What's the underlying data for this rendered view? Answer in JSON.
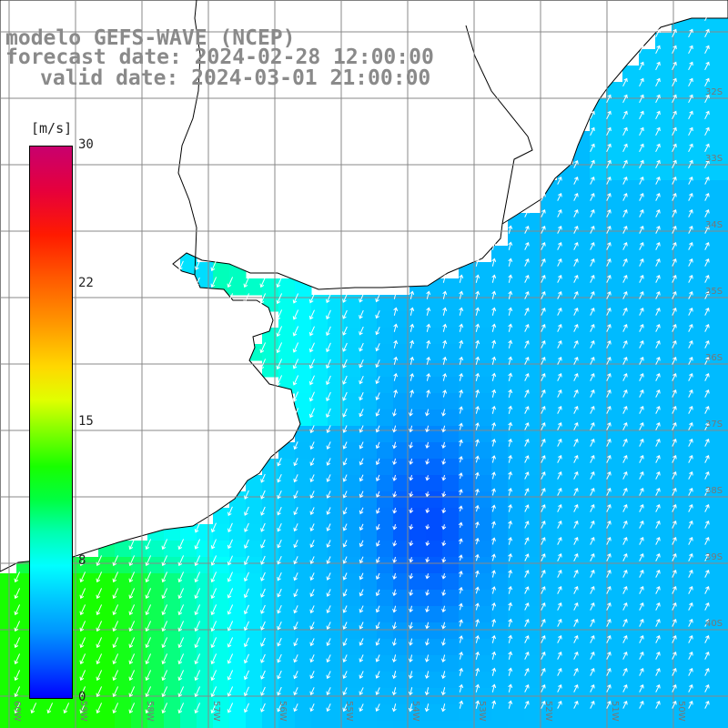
{
  "title": {
    "line1": "modelo GEFS-WAVE (NCEP)",
    "line2": "forecast date: 2024-02-28 12:00:00",
    "line3": "valid date: 2024-03-01 21:00:00"
  },
  "colorbar": {
    "unit": "[m/s]",
    "ticks": [
      "30",
      "22",
      "15",
      "8",
      "0"
    ],
    "min": 0,
    "max": 30,
    "colors": [
      "#0000ff",
      "#0096ff",
      "#00ffff",
      "#00ff40",
      "#18ff00",
      "#ffd800",
      "#ff5a00",
      "#ff1a00",
      "#c8006e"
    ]
  },
  "map": {
    "lon_labels": [
      "60W",
      "59W",
      "58W",
      "57W",
      "56W",
      "55W",
      "54W",
      "53W",
      "52W",
      "51W",
      "50W"
    ],
    "lat_labels": [
      "32S",
      "33S",
      "34S",
      "35S",
      "36S",
      "37S",
      "38S",
      "39S",
      "40S"
    ],
    "land_color": "#ffffff",
    "grid_color": "#888888",
    "arrow_color": "#ffffff",
    "field": "wind speed and direction"
  }
}
